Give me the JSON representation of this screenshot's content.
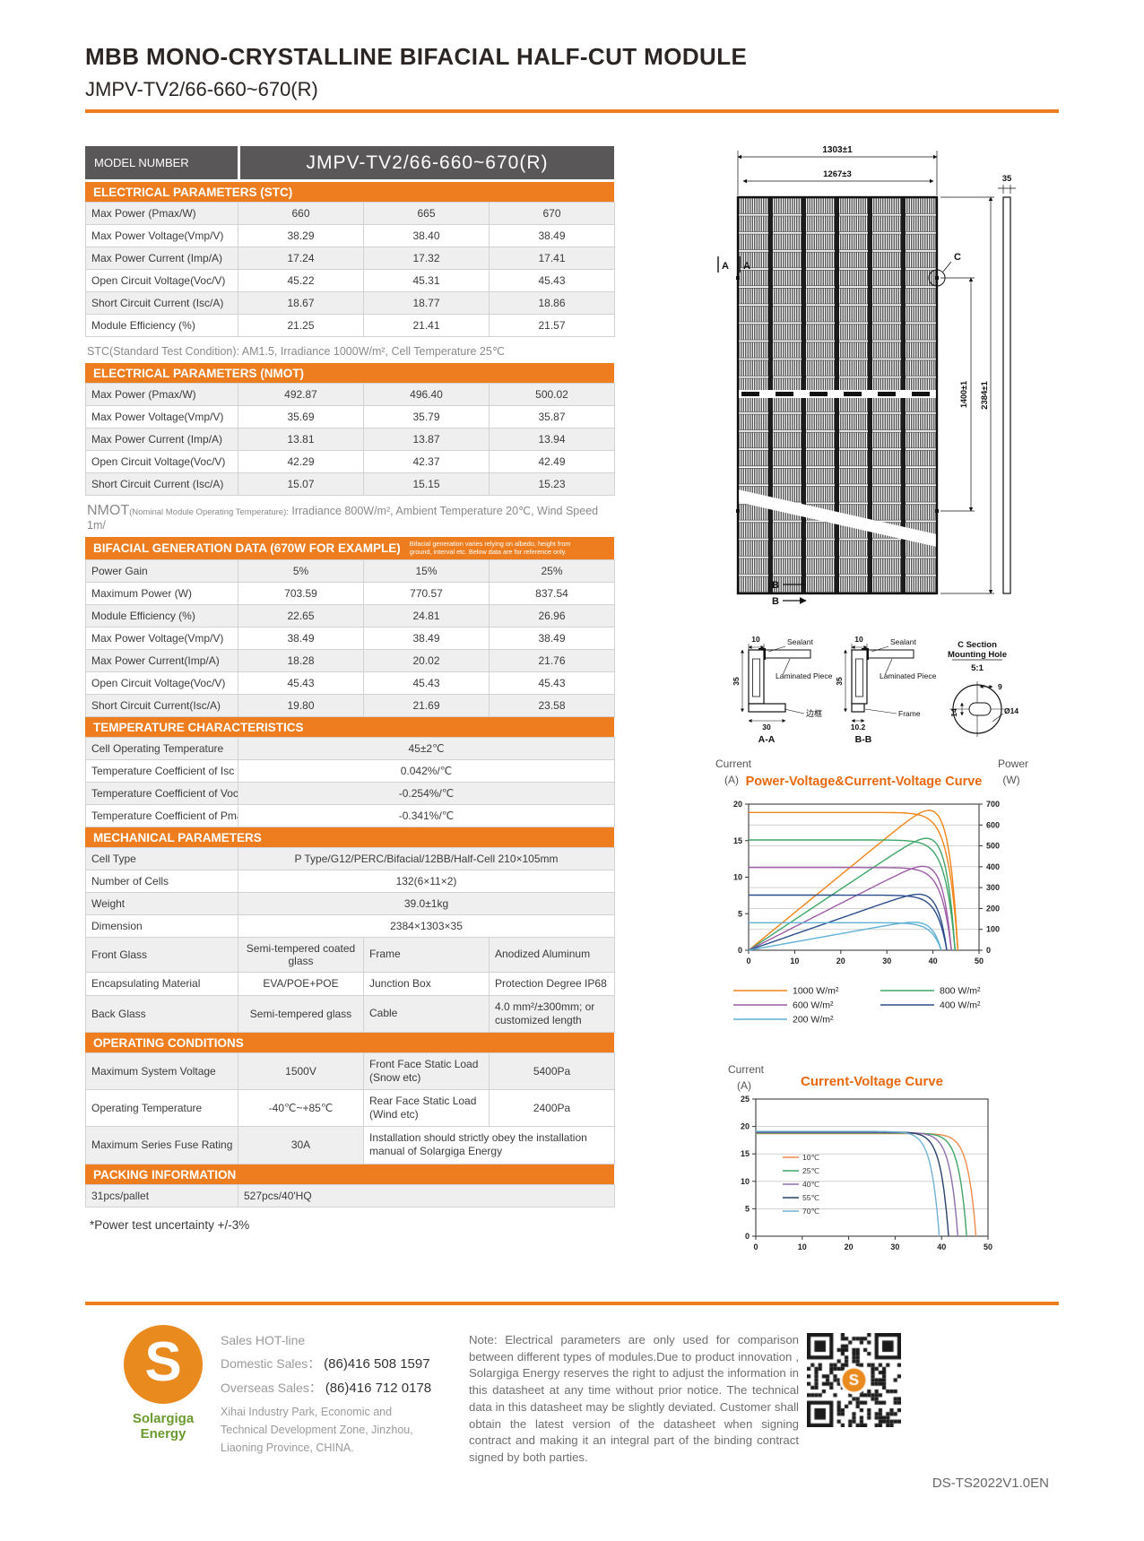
{
  "page": {
    "title": "MBB MONO-CRYSTALLINE BIFACIAL HALF-CUT MODULE",
    "subtitle": "JMPV-TV2/66-660~670(R)",
    "doc_code": "DS-TS2022V1.0EN",
    "uncertainty_note": "*Power test uncertainty  +/-3%"
  },
  "colors": {
    "accent_orange": "#ED7D1F",
    "header_gray": "#595757",
    "row_gray": "#EFEFEF",
    "logo_orange": "#E98A1F",
    "logo_green": "#6B9A2F"
  },
  "model": {
    "label": "MODEL NUMBER",
    "value": "JMPV-TV2/66-660~670(R)"
  },
  "stc": {
    "title": "ELECTRICAL PARAMETERS  (STC)",
    "rows": [
      [
        "Max Power (Pmax/W)",
        "660",
        "665",
        "670"
      ],
      [
        "Max Power Voltage(Vmp/V)",
        "38.29",
        "38.40",
        "38.49"
      ],
      [
        "Max Power Current (Imp/A)",
        "17.24",
        "17.32",
        "17.41"
      ],
      [
        "Open Circuit Voltage(Voc/V)",
        "45.22",
        "45.31",
        "45.43"
      ],
      [
        "Short Circuit Current (Isc/A)",
        "18.67",
        "18.77",
        "18.86"
      ],
      [
        "Module Efficiency (%)",
        "21.25",
        "21.41",
        "21.57"
      ]
    ],
    "footnote": "STC(Standard Test Condition): AM1.5, Irradiance 1000W/m², Cell Temperature 25℃"
  },
  "nmot": {
    "title": "ELECTRICAL PARAMETERS  (NMOT)",
    "rows": [
      [
        "Max Power (Pmax/W)",
        "492.87",
        "496.40",
        "500.02"
      ],
      [
        "Max Power Voltage(Vmp/V)",
        "35.69",
        "35.79",
        "35.87"
      ],
      [
        "Max Power Current (Imp/A)",
        "13.81",
        "13.87",
        "13.94"
      ],
      [
        "Open Circuit Voltage(Voc/V)",
        "42.29",
        "42.37",
        "42.49"
      ],
      [
        "Short Circuit Current (Isc/A)",
        "15.07",
        "15.15",
        "15.23"
      ]
    ],
    "footnote_prefix": "NMOT",
    "footnote_small": "(Nominal Module Operating Temperature):",
    "footnote_text": " Irradiance 800W/m², Ambient Temperature 20℃, Wind Speed 1m/"
  },
  "bifacial": {
    "title": "BIFACIAL GENERATION DATA (670W FOR EXAMPLE)",
    "note": "Bifacial generation varies relying on albedo, height from ground, interval etc. Below data are for reference only.",
    "rows": [
      [
        "Power Gain",
        "5%",
        "15%",
        "25%"
      ],
      [
        "Maximum Power (W)",
        "703.59",
        "770.57",
        "837.54"
      ],
      [
        "Module Efficiency (%)",
        "22.65",
        "24.81",
        "26.96"
      ],
      [
        "Max Power Voltage(Vmp/V)",
        "38.49",
        "38.49",
        "38.49"
      ],
      [
        "Max Power Current(Imp/A)",
        "18.28",
        "20.02",
        "21.76"
      ],
      [
        "Open Circuit Voltage(Voc/V)",
        "45.43",
        "45.43",
        "45.43"
      ],
      [
        "Short Circuit Current(Isc/A)",
        "19.80",
        "21.69",
        "23.58"
      ]
    ]
  },
  "temperature": {
    "title": "TEMPERATURE CHARACTERISTICS",
    "rows": [
      [
        "Cell Operating Temperature",
        "45±2℃"
      ],
      [
        "Temperature Coefficient of Isc",
        "0.042%/℃"
      ],
      [
        "Temperature Coefficient of Voc",
        "-0.254%/℃"
      ],
      [
        "Temperature Coefficient of Pmax",
        "-0.341%/℃"
      ]
    ]
  },
  "mechanical": {
    "title": "MECHANICAL PARAMETERS",
    "rows": [
      [
        "Cell Type",
        "P Type/G12/PERC/Bifacial/12BB/Half-Cell 210×105mm"
      ],
      [
        "Number of Cells",
        "132(6×11×2)"
      ],
      [
        "Weight",
        "39.0±1kg"
      ],
      [
        "Dimension",
        "2384×1303×35"
      ],
      [
        "Front Glass",
        "Semi-tempered coated glass",
        "Frame",
        "Anodized Aluminum"
      ],
      [
        "Encapsulating Material",
        "EVA/POE+POE",
        "Junction Box",
        "Protection Degree IP68"
      ],
      [
        "Back Glass",
        "Semi-tempered glass",
        "Cable",
        "4.0 mm²/±300mm; or customized length"
      ]
    ]
  },
  "operating": {
    "title": "OPERATING CONDITIONS",
    "rows": [
      [
        "Maximum System Voltage",
        "1500V",
        "Front Face Static Load (Snow etc)",
        "5400Pa"
      ],
      [
        "Operating Temperature",
        "-40℃~+85℃",
        "Rear Face Static Load (Wind etc)",
        "2400Pa"
      ],
      [
        "Maximum Series Fuse Rating",
        "30A",
        "Installation should strictly obey the installation manual of Solargiga Energy"
      ]
    ]
  },
  "packing": {
    "title": "PACKING INFORMATION",
    "rows": [
      [
        "31pcs/pallet",
        "527pcs/40'HQ"
      ]
    ]
  },
  "drawing": {
    "dim_width_outer": "1303±1",
    "dim_width_inner": "1267±3",
    "dim_thickness": "35",
    "dim_hole_span": "1400±1",
    "dim_height": "2384±1",
    "label_a": "A",
    "label_b": "B",
    "label_c": "C",
    "section_a": {
      "title": "A-A",
      "dim_top": "10",
      "dim_side": "35",
      "dim_bottom": "30",
      "sealant": "Sealant",
      "laminated": "Laminated Piece",
      "frame": "边框"
    },
    "section_b": {
      "title": "B-B",
      "dim_top": "10",
      "dim_side": "35",
      "dim_bottom": "10.2",
      "sealant": "Sealant",
      "laminated": "Laminated Piece",
      "frame": "Frame"
    },
    "section_c": {
      "line1": "C Section",
      "line2": "Mounting Hole",
      "scale": "5:1",
      "dim_top": "9",
      "dim_side": "14",
      "diameter": "Ø14"
    }
  },
  "chart_data": [
    {
      "type": "line",
      "title": "Power-Voltage&Current-Voltage Curve",
      "left_axis": {
        "label": "Current",
        "unit": "(A)",
        "min": 0,
        "max": 20,
        "ticks": [
          0,
          5,
          10,
          15,
          20
        ]
      },
      "right_axis": {
        "label": "Power",
        "unit": "(W)",
        "min": 0,
        "max": 700,
        "ticks": [
          0,
          100,
          200,
          300,
          400,
          500,
          600,
          700
        ]
      },
      "x_axis": {
        "min": 0,
        "max": 50,
        "ticks": [
          0,
          10,
          20,
          30,
          40,
          50
        ]
      },
      "grid": "on",
      "legend_position": "bottom",
      "series": [
        {
          "name": "1000 W/m²",
          "color": "#F08519",
          "isc": 18.86,
          "voc": 45.4,
          "pmax": 670
        },
        {
          "name": "800 W/m²",
          "color": "#3FA567",
          "isc": 15.09,
          "voc": 44.8,
          "pmax": 536
        },
        {
          "name": "600 W/m²",
          "color": "#9D5DA6",
          "isc": 11.32,
          "voc": 44.0,
          "pmax": 402
        },
        {
          "name": "400 W/m²",
          "color": "#2B4D8C",
          "isc": 7.54,
          "voc": 43.0,
          "pmax": 268
        },
        {
          "name": "200 W/m²",
          "color": "#5FB0D4",
          "isc": 3.77,
          "voc": 41.8,
          "pmax": 134
        }
      ]
    },
    {
      "type": "line",
      "title": "Current-Voltage Curve",
      "left_axis": {
        "label": "Current",
        "unit": "(A)",
        "min": 0,
        "max": 25,
        "ticks": [
          0,
          5,
          10,
          15,
          20,
          25
        ]
      },
      "x_axis": {
        "min": 0,
        "max": 50,
        "ticks": [
          0,
          10,
          20,
          30,
          40,
          50
        ]
      },
      "grid": "on",
      "legend_position": "inside-left",
      "series": [
        {
          "name": "10℃",
          "color": "#EE8C4E",
          "isc": 18.7,
          "voc": 47.4
        },
        {
          "name": "25℃",
          "color": "#3FA567",
          "isc": 18.8,
          "voc": 45.4
        },
        {
          "name": "40℃",
          "color": "#8E6FAE",
          "isc": 18.9,
          "voc": 43.5
        },
        {
          "name": "55℃",
          "color": "#27426E",
          "isc": 19.0,
          "voc": 41.5
        },
        {
          "name": "70℃",
          "color": "#6FB3D4",
          "isc": 19.1,
          "voc": 39.5
        }
      ]
    }
  ],
  "footer": {
    "logo_letter": "S",
    "logo_text": "Solargiga Energy",
    "hotline_title": "Sales HOT-line",
    "domestic_label": "Domestic Sales：",
    "domestic_value": "(86)416 508 1597",
    "overseas_label": "Overseas Sales：",
    "overseas_value": "(86)416 712 0178",
    "address": "Xihai Industry Park, Economic and Technical Development Zone, Jinzhou, Liaoning Province, CHINA.",
    "note": "Note:  Electrical parameters are only used for comparison between different types of modules.Due to product innovation , Solargiga Energy reserves the right to adjust the information in this datasheet at any time without prior notice. The technical data in this datasheet may be slightly deviated. Customer shall obtain the latest version of the datasheet when signing contract and making it an integral part of the binding contract signed by both parties."
  }
}
